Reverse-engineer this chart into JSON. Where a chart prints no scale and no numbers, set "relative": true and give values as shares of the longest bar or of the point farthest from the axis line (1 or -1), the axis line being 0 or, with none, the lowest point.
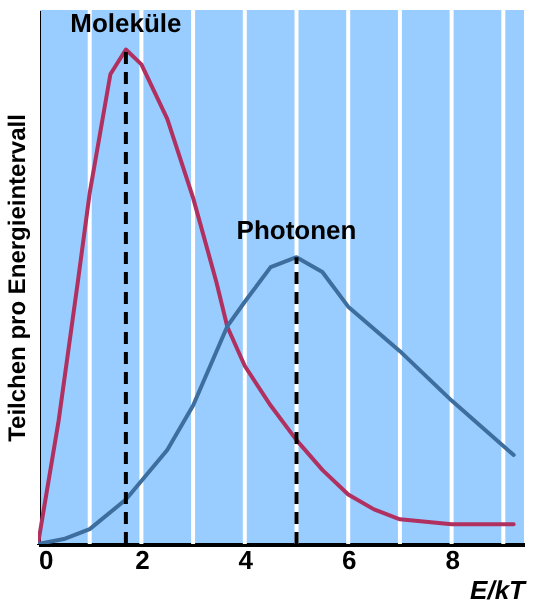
{
  "chart_data": {
    "type": "line",
    "xlabel": "E/kT",
    "ylabel": "Teilchen pro Energieintervall",
    "relative": true,
    "xlim": [
      0,
      9.4
    ],
    "xticks": [
      0,
      {
        "value": 1,
        "label": null
      },
      2,
      {
        "value": 3,
        "label": null
      },
      4,
      {
        "value": 5,
        "label": null
      },
      6,
      {
        "value": 7,
        "label": null
      },
      8,
      {
        "value": 9,
        "label": null
      }
    ],
    "grid": "x",
    "series": [
      {
        "name": "Moleküle",
        "color": "#b03060",
        "x": [
          0,
          0.4,
          0.77,
          1,
          1.4,
          1.7,
          2,
          2.5,
          3,
          3.45,
          3.66,
          4,
          4.5,
          5,
          5.5,
          6,
          6.5,
          7,
          8,
          9.2
        ],
        "values": [
          0,
          0.25,
          0.53,
          0.71,
          0.95,
          1,
          0.97,
          0.86,
          0.7,
          0.53,
          0.44,
          0.36,
          0.28,
          0.21,
          0.15,
          0.1,
          0.07,
          0.05,
          0.04,
          0.04
        ]
      },
      {
        "name": "Photonen",
        "color": "#3d6e9e",
        "x": [
          0,
          0.5,
          1,
          1.7,
          2.5,
          3,
          3.66,
          4,
          4.5,
          5,
          5.5,
          6,
          7,
          8,
          9.2
        ],
        "values": [
          0,
          0.01,
          0.03,
          0.09,
          0.19,
          0.28,
          0.44,
          0.49,
          0.56,
          0.58,
          0.55,
          0.48,
          0.39,
          0.29,
          0.18
        ]
      }
    ],
    "ref_lines": [
      {
        "axis": "x",
        "value": 1.7,
        "line_style": "dashed",
        "color": "#000000"
      },
      {
        "axis": "x",
        "value": 5,
        "line_style": "dashed",
        "color": "#000000"
      }
    ]
  }
}
